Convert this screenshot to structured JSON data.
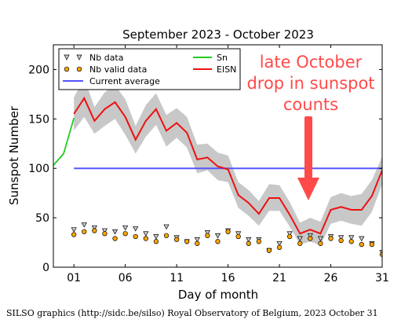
{
  "chart_data": {
    "type": "line",
    "title": "September 2023 - October 2023",
    "xlabel": "Day of month",
    "ylabel": "Sunspot Number",
    "xlim": [
      -1,
      31
    ],
    "ylim": [
      0,
      225
    ],
    "grid": false,
    "xticks": [
      {
        "value": 1,
        "label": "01"
      },
      {
        "value": 6,
        "label": "06"
      },
      {
        "value": 11,
        "label": "11"
      },
      {
        "value": 16,
        "label": "16"
      },
      {
        "value": 21,
        "label": "21"
      },
      {
        "value": 26,
        "label": "26"
      },
      {
        "value": 31,
        "label": "31"
      }
    ],
    "yticks": [
      0,
      50,
      100,
      150,
      200
    ],
    "legend": {
      "placement": "top-left",
      "entries": [
        {
          "label": "Nb data",
          "key": "nb_data"
        },
        {
          "label": "Nb valid data",
          "key": "nb_valid"
        },
        {
          "label": "Current average",
          "key": "current_average"
        },
        {
          "label": "Sn",
          "key": "sn"
        },
        {
          "label": "EISN",
          "key": "eisn"
        }
      ]
    },
    "colors": {
      "sn": "#22cc22",
      "eisn": "#ee1111",
      "current_average": "#5555ff",
      "band": "#c8c8c8",
      "nb_valid_fill": "#ffa500",
      "nb_data_fill": "#cccccc",
      "annotation_text": "#ff4a4a",
      "arrow": "#ff4a4a"
    },
    "current_average": 100,
    "sn": {
      "x": [
        -1,
        0,
        1
      ],
      "y": [
        103,
        115,
        151
      ]
    },
    "eisn": {
      "x": [
        1,
        2,
        3,
        4,
        5,
        6,
        7,
        8,
        9,
        10,
        11,
        12,
        13,
        14,
        15,
        16,
        17,
        18,
        19,
        20,
        21,
        22,
        23,
        24,
        25,
        26,
        27,
        28,
        29,
        30,
        31
      ],
      "y": [
        155,
        171,
        148,
        160,
        167,
        152,
        129,
        148,
        160,
        138,
        146,
        136,
        109,
        111,
        102,
        99,
        73,
        65,
        54,
        70,
        70,
        53,
        34,
        38,
        34,
        58,
        61,
        58,
        58,
        72,
        98
      ],
      "lower": [
        138,
        152,
        135,
        143,
        150,
        134,
        115,
        132,
        144,
        122,
        131,
        121,
        95,
        98,
        88,
        86,
        60,
        52,
        42,
        57,
        57,
        41,
        23,
        26,
        22,
        44,
        47,
        44,
        42,
        56,
        84
      ],
      "upper": [
        172,
        191,
        162,
        177,
        184,
        170,
        143,
        164,
        176,
        154,
        161,
        152,
        124,
        125,
        116,
        113,
        86,
        78,
        67,
        84,
        83,
        66,
        45,
        50,
        46,
        71,
        75,
        72,
        74,
        88,
        112
      ]
    },
    "nb_data": {
      "x": [
        1,
        2,
        3,
        4,
        5,
        6,
        7,
        8,
        9,
        10,
        11,
        12,
        13,
        14,
        15,
        16,
        17,
        18,
        19,
        20,
        21,
        22,
        23,
        24,
        25,
        26,
        27,
        28,
        29,
        30,
        31
      ],
      "y": [
        38,
        43,
        40,
        37,
        36,
        40,
        39,
        34,
        31,
        41,
        30,
        26,
        28,
        35,
        32,
        37,
        34,
        28,
        28,
        17,
        24,
        34,
        29,
        32,
        29,
        31,
        30,
        30,
        29,
        24,
        15
      ]
    },
    "nb_valid": {
      "x": [
        1,
        2,
        3,
        4,
        5,
        6,
        7,
        8,
        9,
        10,
        11,
        12,
        13,
        14,
        15,
        16,
        17,
        18,
        19,
        20,
        21,
        22,
        23,
        24,
        25,
        26,
        27,
        28,
        29,
        30,
        31
      ],
      "y": [
        33,
        36,
        37,
        34,
        29,
        34,
        31,
        29,
        26,
        32,
        28,
        26,
        24,
        32,
        26,
        36,
        31,
        24,
        26,
        17,
        20,
        31,
        24,
        29,
        24,
        29,
        27,
        26,
        23,
        23,
        13
      ]
    },
    "annotation": {
      "lines": [
        "late October",
        "drop in sunspot",
        "counts"
      ]
    }
  },
  "footer": "SILSO graphics (http://sidc.be/silso) Royal Observatory of Belgium, 2023 October 31"
}
